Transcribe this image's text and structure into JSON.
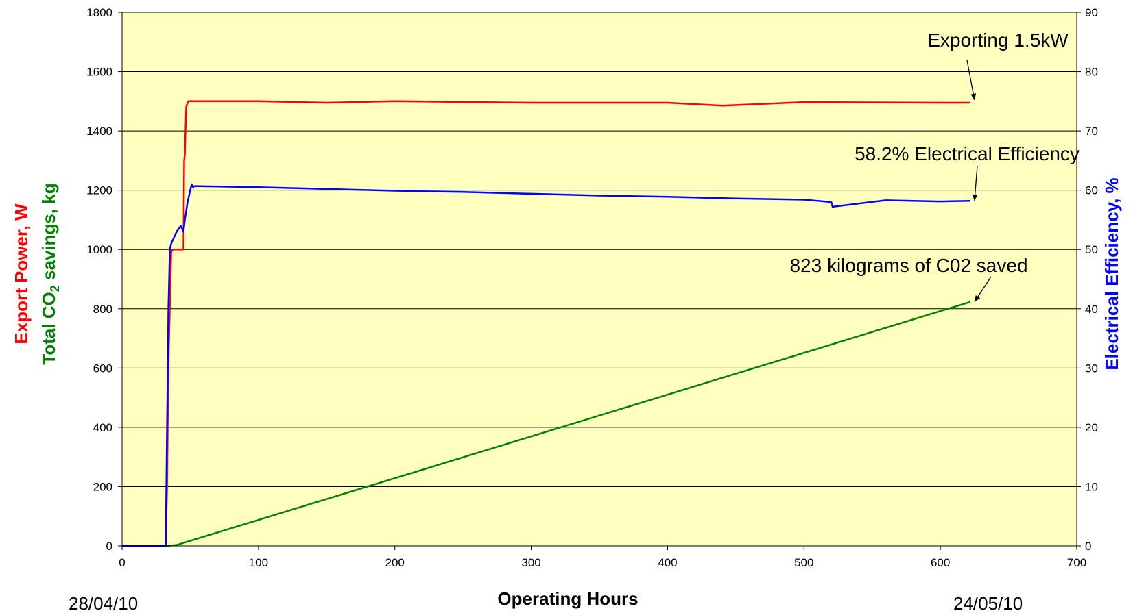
{
  "chart_data": {
    "type": "line",
    "xlabel": "Operating Hours",
    "ylabel_left": {
      "line1": "Export Power, W",
      "line2_prefix": "Total CO",
      "line2_sub": "2",
      "line2_suffix": " savings, kg"
    },
    "ylabel_right": "Electrical Efficiency, %",
    "xlim": [
      0,
      700
    ],
    "ylim_left": [
      0,
      1800
    ],
    "ylim_right": [
      0,
      90
    ],
    "x_ticks": [
      0,
      100,
      200,
      300,
      400,
      500,
      600,
      700
    ],
    "y_left_ticks": [
      0,
      200,
      400,
      600,
      800,
      1000,
      1200,
      1400,
      1600,
      1800
    ],
    "y_right_ticks": [
      0,
      10,
      20,
      30,
      40,
      50,
      60,
      70,
      80,
      90
    ],
    "date_start": "28/04/10",
    "date_end": "24/05/10",
    "grid": true,
    "plot_background": "#FFFFC0",
    "series": [
      {
        "key": "export_power",
        "axis": "left",
        "color": "#FF0000",
        "x": [
          0,
          32,
          33,
          34,
          35,
          36,
          37,
          45,
          45.5,
          46,
          47,
          48,
          48.5,
          100,
          150,
          200,
          300,
          400,
          440,
          500,
          600,
          622
        ],
        "y": [
          0,
          0,
          200,
          620,
          800,
          990,
          1000,
          1000,
          1300,
          1320,
          1480,
          1495,
          1500,
          1500,
          1495,
          1500,
          1495,
          1495,
          1485,
          1497,
          1495,
          1495
        ]
      },
      {
        "key": "co2_savings",
        "axis": "left",
        "color": "#008000",
        "x": [
          0,
          32,
          40,
          622
        ],
        "y": [
          0,
          0,
          3,
          823
        ]
      },
      {
        "key": "electrical_efficiency",
        "axis": "right",
        "color": "#0000FF",
        "x": [
          0,
          32,
          33,
          34,
          35,
          36,
          38,
          40,
          43,
          45,
          46,
          48,
          50,
          51,
          52,
          53,
          100,
          150,
          200,
          250,
          300,
          350,
          400,
          450,
          500,
          520,
          521,
          560,
          600,
          622
        ],
        "y": [
          0,
          0,
          20,
          40,
          50,
          51,
          52,
          53,
          54,
          53,
          55,
          58,
          60,
          61,
          60.5,
          60.7,
          60.5,
          60.2,
          59.9,
          59.7,
          59.4,
          59.1,
          58.9,
          58.6,
          58.4,
          58.0,
          57.2,
          58.3,
          58.1,
          58.2
        ]
      }
    ],
    "annotations": [
      {
        "key": "export",
        "text": "Exporting 1.5kW",
        "x": 622,
        "y_left": 1495
      },
      {
        "key": "efficiency",
        "text": "58.2%   Electrical Efficiency",
        "x": 622,
        "y_right": 58.2
      },
      {
        "key": "co2",
        "text": "823   kilograms of C02 saved",
        "x": 622,
        "y_left": 823
      }
    ]
  }
}
